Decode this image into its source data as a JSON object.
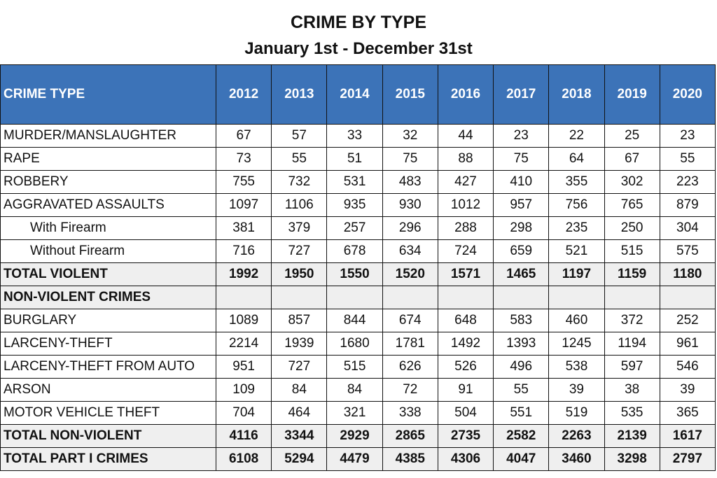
{
  "header": {
    "title": "CRIME BY TYPE",
    "subtitle": "January 1st - December 31st"
  },
  "table": {
    "columns": [
      "CRIME TYPE",
      "2012",
      "2013",
      "2014",
      "2015",
      "2016",
      "2017",
      "2018",
      "2019",
      "2020"
    ],
    "rows": [
      {
        "label": "MURDER/MANSLAUGHTER",
        "values": [
          67,
          57,
          33,
          32,
          44,
          23,
          22,
          25,
          23
        ]
      },
      {
        "label": "RAPE",
        "values": [
          73,
          55,
          51,
          75,
          88,
          75,
          64,
          67,
          55
        ]
      },
      {
        "label": "ROBBERY",
        "values": [
          755,
          732,
          531,
          483,
          427,
          410,
          355,
          302,
          223
        ]
      },
      {
        "label": "AGGRAVATED ASSAULTS",
        "values": [
          1097,
          1106,
          935,
          930,
          1012,
          957,
          756,
          765,
          879
        ]
      },
      {
        "label": "With Firearm",
        "values": [
          381,
          379,
          257,
          296,
          288,
          298,
          235,
          250,
          304
        ],
        "style": "indent"
      },
      {
        "label": "Without Firearm",
        "values": [
          716,
          727,
          678,
          634,
          724,
          659,
          521,
          515,
          575
        ],
        "style": "indent"
      },
      {
        "label": "TOTAL VIOLENT",
        "values": [
          1992,
          1950,
          1550,
          1520,
          1571,
          1465,
          1197,
          1159,
          1180
        ],
        "style": "total"
      },
      {
        "label": "NON-VIOLENT CRIMES",
        "style": "section"
      },
      {
        "label": "BURGLARY",
        "values": [
          1089,
          857,
          844,
          674,
          648,
          583,
          460,
          372,
          252
        ]
      },
      {
        "label": "LARCENY-THEFT",
        "values": [
          2214,
          1939,
          1680,
          1781,
          1492,
          1393,
          1245,
          1194,
          961
        ]
      },
      {
        "label": "LARCENY-THEFT FROM AUTO",
        "values": [
          951,
          727,
          515,
          626,
          526,
          496,
          538,
          597,
          546
        ]
      },
      {
        "label": "ARSON",
        "values": [
          109,
          84,
          84,
          72,
          91,
          55,
          39,
          38,
          39
        ]
      },
      {
        "label": "MOTOR VEHICLE THEFT",
        "values": [
          704,
          464,
          321,
          338,
          504,
          551,
          519,
          535,
          365
        ]
      },
      {
        "label": "TOTAL NON-VIOLENT",
        "values": [
          4116,
          3344,
          2929,
          2865,
          2735,
          2582,
          2263,
          2139,
          1617
        ],
        "style": "total"
      },
      {
        "label": "TOTAL PART I CRIMES",
        "values": [
          6108,
          5294,
          4479,
          4385,
          4306,
          4047,
          3460,
          3298,
          2797
        ],
        "style": "total"
      }
    ]
  }
}
